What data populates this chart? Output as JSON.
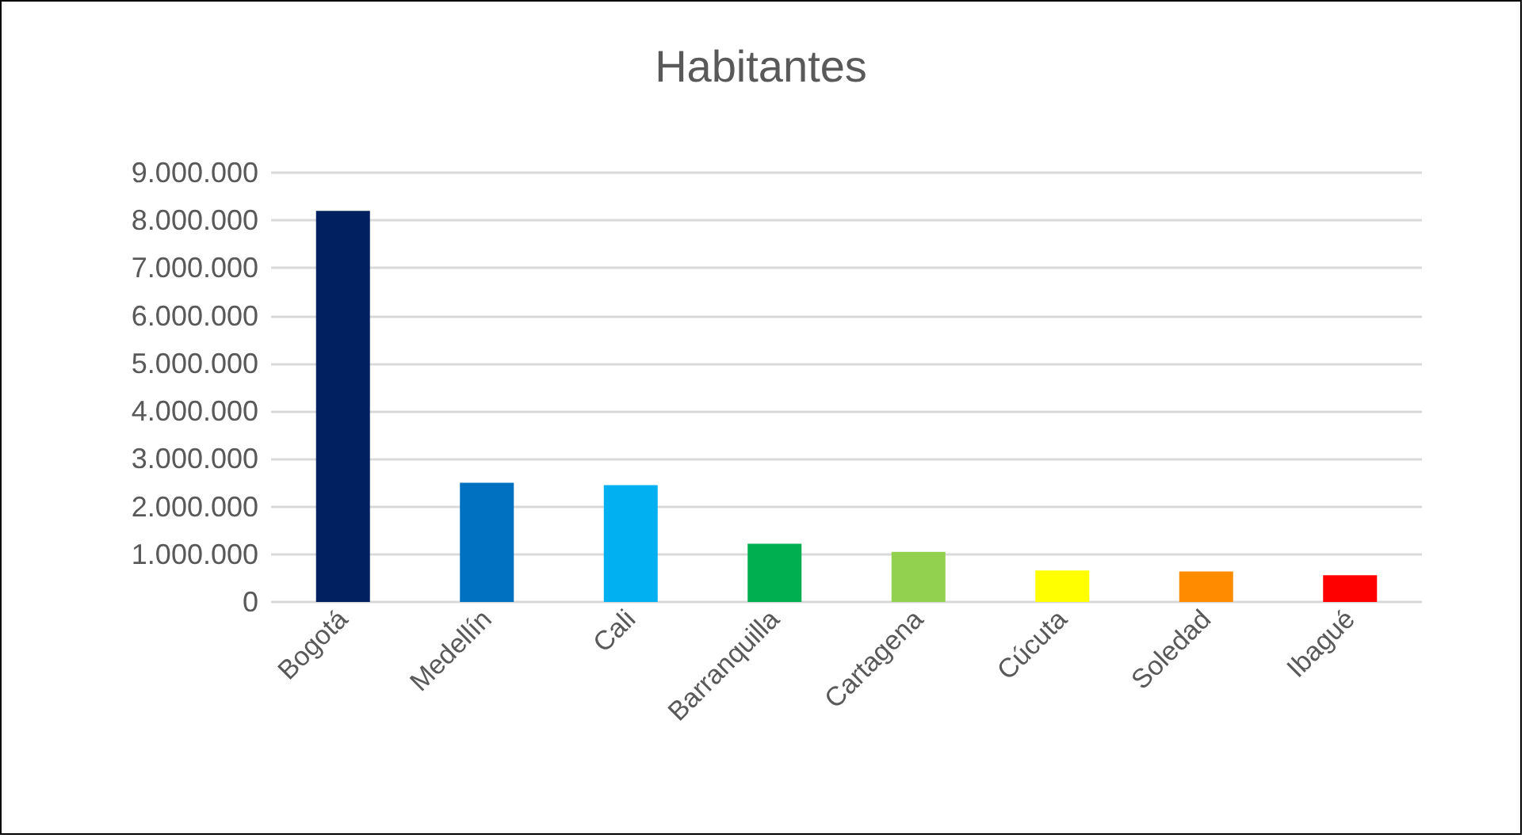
{
  "chart_data": {
    "type": "bar",
    "title": "Habitantes",
    "categories": [
      "Bogotá",
      "Medellín",
      "Cali",
      "Barranquilla",
      "Cartagena",
      "Cúcuta",
      "Soledad",
      "Ibagué"
    ],
    "values": [
      8200000,
      2500000,
      2450000,
      1220000,
      1050000,
      660000,
      640000,
      560000
    ],
    "colors": [
      "#002060",
      "#0070c0",
      "#00b0f0",
      "#00b050",
      "#92d050",
      "#ffff00",
      "#ff8c00",
      "#ff0000"
    ],
    "ylim": [
      0,
      9000000
    ],
    "yticks": [
      {
        "value": 0,
        "label": "0"
      },
      {
        "value": 1000000,
        "label": "1.000.000"
      },
      {
        "value": 2000000,
        "label": "2.000.000"
      },
      {
        "value": 3000000,
        "label": "3.000.000"
      },
      {
        "value": 4000000,
        "label": "4.000.000"
      },
      {
        "value": 5000000,
        "label": "5.000.000"
      },
      {
        "value": 6000000,
        "label": "6.000.000"
      },
      {
        "value": 7000000,
        "label": "7.000.000"
      },
      {
        "value": 8000000,
        "label": "8.000.000"
      },
      {
        "value": 9000000,
        "label": "9.000.000"
      }
    ],
    "grid": "y"
  }
}
